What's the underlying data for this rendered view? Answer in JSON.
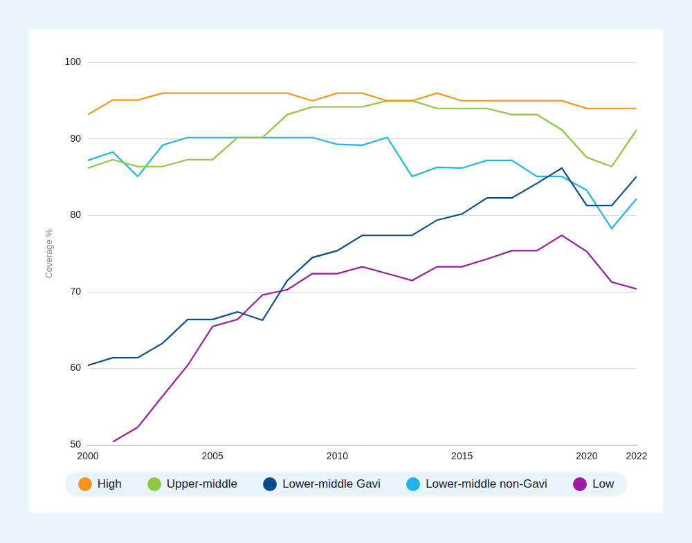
{
  "chart_data": {
    "type": "line",
    "y_label": "Coverage %",
    "x": [
      2000,
      2001,
      2002,
      2003,
      2004,
      2005,
      2006,
      2007,
      2008,
      2009,
      2010,
      2011,
      2012,
      2013,
      2014,
      2015,
      2016,
      2017,
      2018,
      2019,
      2020,
      2021,
      2022
    ],
    "series": [
      {
        "name": "High",
        "color": "#f7941d",
        "values": [
          93.2,
          95.1,
          95.1,
          96,
          96,
          96,
          96,
          96,
          96,
          95,
          96,
          96,
          95,
          95,
          96,
          95,
          95,
          95,
          95,
          95,
          94,
          94,
          94
        ]
      },
      {
        "name": "Upper-middle",
        "color": "#8dc63f",
        "values": [
          86.2,
          87.3,
          86.4,
          86.4,
          87.3,
          87.3,
          90.2,
          90.2,
          93.2,
          94.2,
          94.2,
          94.2,
          95,
          95,
          94,
          94,
          94,
          93.2,
          93.2,
          91.2,
          87.6,
          86.4,
          91.2
        ]
      },
      {
        "name": "Lower-middle Gavi",
        "color": "#0a4c8c",
        "values": [
          60.4,
          61.4,
          61.4,
          63.3,
          66.4,
          66.4,
          67.4,
          66.3,
          71.5,
          74.5,
          75.4,
          77.4,
          77.4,
          77.4,
          79.4,
          80.2,
          82.3,
          82.3,
          84.2,
          86.2,
          81.3,
          81.3,
          85.1
        ]
      },
      {
        "name": "Lower-middle non-Gavi",
        "color": "#1fb6e6",
        "values": [
          87.2,
          88.3,
          85.1,
          89.2,
          90.2,
          90.2,
          90.2,
          90.2,
          90.2,
          90.2,
          89.3,
          89.2,
          90.2,
          85.1,
          86.3,
          86.2,
          87.2,
          87.2,
          85.1,
          85.1,
          83.3,
          78.3,
          82.2
        ]
      },
      {
        "name": "Low",
        "color": "#9b1c9e",
        "values": [
          null,
          50.4,
          52.3,
          56.4,
          60.4,
          65.5,
          66.4,
          69.6,
          70.3,
          72.4,
          72.4,
          73.3,
          72.4,
          71.5,
          73.3,
          73.3,
          74.3,
          75.4,
          75.4,
          77.4,
          75.3,
          71.3,
          70.4
        ]
      }
    ],
    "xlim": [
      2000,
      2022
    ],
    "xticks": [
      2000,
      2005,
      2010,
      2015,
      2020,
      2022
    ],
    "ylim": [
      50,
      100
    ],
    "yticks": [
      50,
      60,
      70,
      80,
      90,
      100
    ],
    "grid": true,
    "legend": "bottom"
  }
}
